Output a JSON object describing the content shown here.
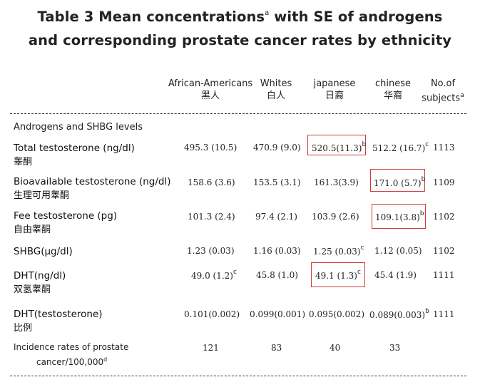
{
  "title": {
    "line1": "Table 3 Mean concentrations",
    "line1_sup": "a",
    "line1_rest": " with SE of androgens",
    "line2": "and corresponding prostate cancer rates by  ethnicity"
  },
  "columns": [
    {
      "en": "African-Americans",
      "cn": "黑人"
    },
    {
      "en": "Whites",
      "cn": "白人"
    },
    {
      "en": "japanese",
      "cn": "日裔"
    },
    {
      "en": "chinese",
      "cn": "华裔"
    },
    {
      "en": "No.of",
      "cn": "subjects",
      "sup": "a"
    }
  ],
  "section_label": "Androgens and SHBG levels",
  "rows": [
    {
      "label": "Total testosterone (ng/dl)",
      "label_cn": "睾酮",
      "cells": [
        {
          "v": "495.3 (10.5)"
        },
        {
          "v": "470.9 (9.0)"
        },
        {
          "v": "520.5(11.3)",
          "sup": "b"
        },
        {
          "v": "512.2 (16.7)",
          "sup": "c"
        },
        {
          "v": "1113"
        }
      ]
    },
    {
      "label": "Bioavailable testosterone (ng/dl)",
      "label_cn": "生理可用睾酮",
      "cells": [
        {
          "v": "158.6 (3.6)"
        },
        {
          "v": "153.5 (3.1)"
        },
        {
          "v": "161.3(3.9)"
        },
        {
          "v": "171.0 (5.7)",
          "sup": "b"
        },
        {
          "v": "1109"
        }
      ]
    },
    {
      "label": "Fee testosterone (pg)",
      "label_cn": "自由睾酮",
      "cells": [
        {
          "v": "101.3 (2.4)"
        },
        {
          "v": "97.4 (2.1)"
        },
        {
          "v": "103.9 (2.6)"
        },
        {
          "v": "109.1(3.8)",
          "sup": "b"
        },
        {
          "v": "1102"
        }
      ]
    },
    {
      "label": "SHBG(µg/dl)",
      "label_cn": "",
      "cells": [
        {
          "v": "1.23 (0.03)"
        },
        {
          "v": "1.16 (0.03)"
        },
        {
          "v": "1.25 (0.03)",
          "sup": "c"
        },
        {
          "v": "1.12 (0.05)"
        },
        {
          "v": "1102"
        }
      ]
    },
    {
      "label": "DHT(ng/dl)",
      "label_cn": "双氢睾酮",
      "cells": [
        {
          "v": "49.0 (1.2)",
          "sup": "c"
        },
        {
          "v": "45.8 (1.0)"
        },
        {
          "v": "49.1 (1.3)",
          "sup": "c"
        },
        {
          "v": "45.4 (1.9)"
        },
        {
          "v": "1111"
        }
      ]
    },
    {
      "label": "DHT(testosterone)",
      "label_cn": "比例",
      "cells": [
        {
          "v": "0.101(0.002)"
        },
        {
          "v": "0.099(0.001)"
        },
        {
          "v": "0.095(0.002)"
        },
        {
          "v": "0.089(0.003)",
          "sup": "b"
        },
        {
          "v": "1111"
        }
      ]
    },
    {
      "label": "Incidence rates of prostate",
      "label_cn": "cancer/100,000",
      "label_sup": "d",
      "cells": [
        {
          "v": "121"
        },
        {
          "v": "83"
        },
        {
          "v": "40"
        },
        {
          "v": "33"
        },
        {
          "v": ""
        }
      ]
    }
  ],
  "highlight_color": "#d03a3a"
}
